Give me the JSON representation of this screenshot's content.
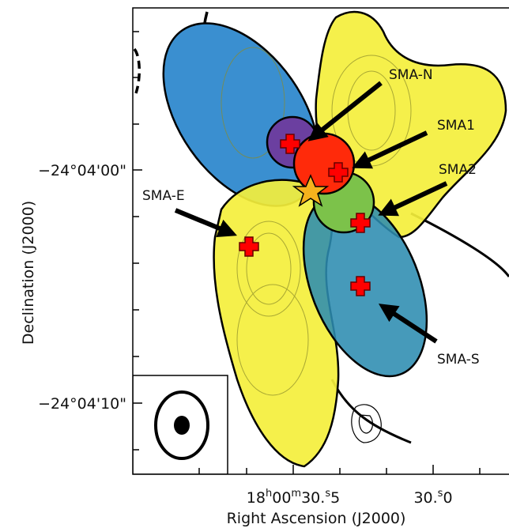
{
  "axes": {
    "y_label": "Declination (J2000)",
    "x_label": "Right Ascension (J2000)",
    "y_ticks": [
      "−24°04'00\"",
      "−24°04'10\""
    ],
    "x_ticks": [
      {
        "parts": [
          "18",
          "h",
          "00",
          "m",
          "30.",
          "s",
          "5"
        ]
      },
      {
        "parts": [
          "30.",
          "s",
          "0"
        ]
      }
    ]
  },
  "sources": [
    "SMA-N",
    "SMA1",
    "SMA2",
    "SMA-E",
    "SMA-S"
  ]
}
